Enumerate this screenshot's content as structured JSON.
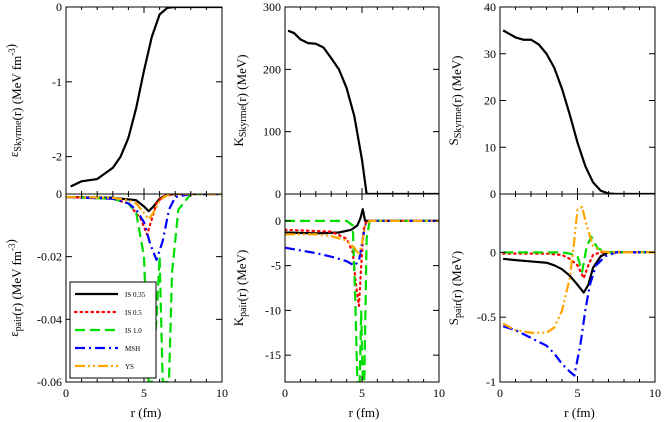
{
  "chart_data": [
    {
      "id": "eps_skyrme",
      "type": "line",
      "ylabel": "ε_Skyrme(r)  (MeV fm^-3)",
      "xlim": [
        0,
        10
      ],
      "ylim": [
        -2.5,
        0
      ],
      "xticks": [],
      "yticks": [
        "0",
        "-1",
        "-2"
      ],
      "ytick_values": [
        0,
        -1,
        -2
      ],
      "series": [
        {
          "style": "IS0.35",
          "x": [
            0.3,
            1,
            2,
            3,
            3.5,
            4,
            4.5,
            5,
            5.5,
            6,
            6.5,
            7,
            7.5,
            8,
            10
          ],
          "y": [
            -2.4,
            -2.33,
            -2.3,
            -2.15,
            -2.0,
            -1.75,
            -1.35,
            -0.85,
            -0.4,
            -0.1,
            -0.01,
            0,
            0,
            0,
            0
          ]
        }
      ]
    },
    {
      "id": "k_skyrme",
      "type": "line",
      "ylabel": "K_Skyrme(r)  (MeV)",
      "xlim": [
        0,
        10
      ],
      "ylim": [
        0,
        300
      ],
      "xticks": [],
      "yticks": [
        "0",
        "100",
        "200",
        "300"
      ],
      "ytick_values": [
        0,
        100,
        200,
        300
      ],
      "series": [
        {
          "style": "IS0.35",
          "x": [
            0.2,
            0.6,
            1,
            1.5,
            2,
            2.5,
            3,
            3.5,
            4,
            4.5,
            5,
            5.3,
            10
          ],
          "y": [
            262,
            258,
            248,
            242,
            241,
            235,
            218,
            200,
            170,
            125,
            55,
            0,
            0
          ]
        }
      ]
    },
    {
      "id": "s_skyrme",
      "type": "line",
      "ylabel": "S_Skyrme(r)  (MeV)",
      "xlim": [
        0,
        10
      ],
      "ylim": [
        0,
        40
      ],
      "xticks": [],
      "yticks": [
        "0",
        "10",
        "20",
        "30",
        "40"
      ],
      "ytick_values": [
        0,
        10,
        20,
        30,
        40
      ],
      "series": [
        {
          "style": "IS0.35",
          "x": [
            0.2,
            1,
            1.5,
            2,
            2.5,
            3,
            3.5,
            4,
            4.5,
            5,
            5.5,
            6,
            6.5,
            7,
            7.5,
            10
          ],
          "y": [
            35,
            33.5,
            33,
            33,
            32,
            30,
            27,
            22.5,
            17,
            11,
            6,
            2.5,
            0.7,
            0.1,
            0,
            0
          ]
        }
      ]
    },
    {
      "id": "eps_pair",
      "type": "line",
      "xlabel": "r    (fm)",
      "ylabel": "ε_pair(r)  (MeV fm^-3)",
      "xlim": [
        0,
        10
      ],
      "ylim": [
        -0.06,
        0
      ],
      "xticks": [
        "0",
        "5",
        "10"
      ],
      "xtick_values": [
        0,
        5,
        10
      ],
      "yticks": [
        "0",
        "-0.02",
        "-0.04",
        "-0.06"
      ],
      "ytick_values": [
        0,
        -0.02,
        -0.04,
        -0.06
      ],
      "legend": {
        "placement": "bottom-left",
        "entries": [
          "IS 0.35",
          "IS 0.5",
          "IS 1.0",
          "MSH",
          "YS"
        ]
      },
      "series": [
        {
          "style": "IS0.35",
          "x": [
            0,
            3,
            4.5,
            5,
            5.3,
            5.6,
            6,
            6.5,
            7,
            10
          ],
          "y": [
            -0.001,
            -0.0012,
            -0.002,
            -0.004,
            -0.0055,
            -0.004,
            -0.0015,
            -0.0002,
            0,
            0
          ]
        },
        {
          "style": "IS0.5",
          "x": [
            0,
            3,
            4,
            4.8,
            5.2,
            5.5,
            5.8,
            6.2,
            7,
            10
          ],
          "y": [
            -0.001,
            -0.0015,
            -0.003,
            -0.008,
            -0.013,
            -0.008,
            -0.003,
            -0.0008,
            0,
            0
          ]
        },
        {
          "style": "IS1.0",
          "x": [
            0,
            3,
            4,
            4.5,
            5,
            5.3,
            5.5,
            5.8,
            6,
            6.2,
            6.4,
            6.6,
            6.8,
            7.2,
            8,
            10
          ],
          "y": [
            -0.001,
            -0.0015,
            -0.003,
            -0.006,
            -0.02,
            -0.06,
            -0.06,
            -0.04,
            -0.02,
            -0.06,
            -0.06,
            -0.06,
            -0.025,
            -0.005,
            0,
            0
          ]
        },
        {
          "style": "MSH",
          "x": [
            0,
            3,
            4,
            4.5,
            5,
            5.4,
            5.8,
            6.2,
            6.6,
            7,
            8,
            10
          ],
          "y": [
            -0.001,
            -0.0015,
            -0.003,
            -0.005,
            -0.009,
            -0.016,
            -0.021,
            -0.015,
            -0.005,
            -0.001,
            0,
            0
          ]
        },
        {
          "style": "YS",
          "x": [
            0,
            3,
            4,
            4.5,
            5,
            5.3,
            5.6,
            6,
            6.5,
            7,
            10
          ],
          "y": [
            -0.001,
            -0.0012,
            -0.002,
            -0.003,
            -0.006,
            -0.008,
            -0.006,
            -0.002,
            -0.0003,
            0,
            0
          ]
        }
      ]
    },
    {
      "id": "k_pair",
      "type": "line",
      "xlabel": "r    (fm)",
      "ylabel": "K_pair(r)  (MeV)",
      "xlim": [
        0,
        10
      ],
      "ylim": [
        -18,
        3
      ],
      "xticks": [
        "0",
        "5",
        "10"
      ],
      "xtick_values": [
        0,
        5,
        10
      ],
      "yticks": [
        "0",
        "-5",
        "-10",
        "-15"
      ],
      "ytick_values": [
        0,
        -5,
        -10,
        -15
      ],
      "series": [
        {
          "style": "IS0.35",
          "x": [
            0,
            2,
            3.5,
            4.3,
            4.7,
            4.9,
            5.05,
            5.2,
            5.4,
            10
          ],
          "y": [
            -1.3,
            -1.4,
            -1.3,
            -1,
            -0.5,
            0.3,
            1.3,
            0,
            0,
            0
          ]
        },
        {
          "style": "IS0.5",
          "x": [
            0,
            3,
            4,
            4.4,
            4.6,
            4.8,
            4.95,
            5.1,
            5.3,
            10
          ],
          "y": [
            -1.0,
            -1.2,
            -2,
            -3.5,
            -7,
            -9.5,
            -5,
            -1,
            0,
            0
          ]
        },
        {
          "style": "IS1.0",
          "x": [
            0,
            3,
            4,
            4.4,
            4.55,
            4.7,
            4.85,
            4.95,
            5.05,
            5.15,
            5.3,
            5.5,
            10
          ],
          "y": [
            0,
            0,
            0,
            -0.5,
            -8,
            -18,
            -18,
            -10,
            -18,
            -18,
            -2,
            0,
            0
          ]
        },
        {
          "style": "MSH",
          "x": [
            0,
            1,
            2,
            3,
            4,
            4.5,
            4.8,
            5,
            5.2,
            5.5,
            10
          ],
          "y": [
            -3,
            -3.3,
            -3.6,
            -4.0,
            -4.5,
            -5.0,
            -4.5,
            -2.5,
            -0.5,
            0,
            0
          ]
        },
        {
          "style": "YS",
          "x": [
            0,
            2,
            3,
            4,
            4.5,
            4.8,
            5,
            5.2,
            5.5,
            10
          ],
          "y": [
            -1.5,
            -1.5,
            -1.7,
            -2.2,
            -3,
            -3.8,
            -2.5,
            -0.5,
            0,
            0
          ]
        }
      ]
    },
    {
      "id": "s_pair",
      "type": "line",
      "xlabel": "r    (fm)",
      "ylabel": "S_pair(r)  (MeV)",
      "xlim": [
        0,
        10
      ],
      "ylim": [
        -1,
        0.45
      ],
      "xticks": [
        "0",
        "5",
        "10"
      ],
      "xtick_values": [
        0,
        5,
        10
      ],
      "yticks": [
        "0",
        "-0.5",
        "-1"
      ],
      "ytick_values": [
        0,
        -0.5,
        -1
      ],
      "series": [
        {
          "style": "IS0.35",
          "x": [
            0.2,
            1,
            2,
            3,
            3.5,
            4,
            4.5,
            5,
            5.4,
            5.7,
            6,
            6.5,
            7,
            8,
            10
          ],
          "y": [
            -0.05,
            -0.06,
            -0.07,
            -0.08,
            -0.1,
            -0.13,
            -0.18,
            -0.25,
            -0.31,
            -0.25,
            -0.12,
            -0.03,
            0,
            0,
            0
          ]
        },
        {
          "style": "IS0.5",
          "x": [
            0.2,
            3,
            4,
            4.5,
            5,
            5.4,
            5.7,
            6,
            6.5,
            7,
            10
          ],
          "y": [
            -0.01,
            -0.01,
            -0.02,
            -0.05,
            -0.1,
            -0.2,
            -0.1,
            -0.02,
            0,
            0,
            0
          ]
        },
        {
          "style": "IS1.0",
          "x": [
            0.2,
            3,
            4,
            4.5,
            5,
            5.3,
            5.6,
            5.9,
            6.3,
            7,
            10
          ],
          "y": [
            0,
            0,
            0,
            -0.01,
            -0.03,
            -0.15,
            0.05,
            0.12,
            0.03,
            0,
            0
          ]
        },
        {
          "style": "MSH",
          "x": [
            0.2,
            1,
            2,
            3,
            3.5,
            4,
            4.5,
            4.8,
            5.2,
            5.5,
            5.8,
            6.2,
            6.8,
            7.5,
            10
          ],
          "y": [
            -0.57,
            -0.6,
            -0.66,
            -0.72,
            -0.78,
            -0.86,
            -0.92,
            -0.95,
            -0.7,
            -0.45,
            -0.25,
            -0.1,
            -0.03,
            0,
            0
          ]
        },
        {
          "style": "YS",
          "x": [
            0.2,
            1,
            2,
            3,
            3.5,
            4,
            4.5,
            4.8,
            5,
            5.3,
            5.6,
            6,
            6.5,
            7,
            10
          ],
          "y": [
            -0.55,
            -0.6,
            -0.62,
            -0.62,
            -0.58,
            -0.45,
            -0.2,
            0.1,
            0.33,
            0.35,
            0.2,
            0.05,
            0.01,
            0,
            0
          ]
        }
      ]
    }
  ],
  "styles": {
    "IS0.35": {
      "color": "#000000",
      "width": 2.2,
      "dash": ""
    },
    "IS0.5": {
      "color": "#ff0000",
      "width": 2.2,
      "dash": "1.5,4"
    },
    "IS1.0": {
      "color": "#00dd00",
      "width": 2.2,
      "dash": "10,5"
    },
    "MSH": {
      "color": "#0000ff",
      "width": 2.2,
      "dash": "10,4,2,4"
    },
    "YS": {
      "color": "#ffa500",
      "width": 2.2,
      "dash": "10,3,2,3,2,3"
    }
  }
}
